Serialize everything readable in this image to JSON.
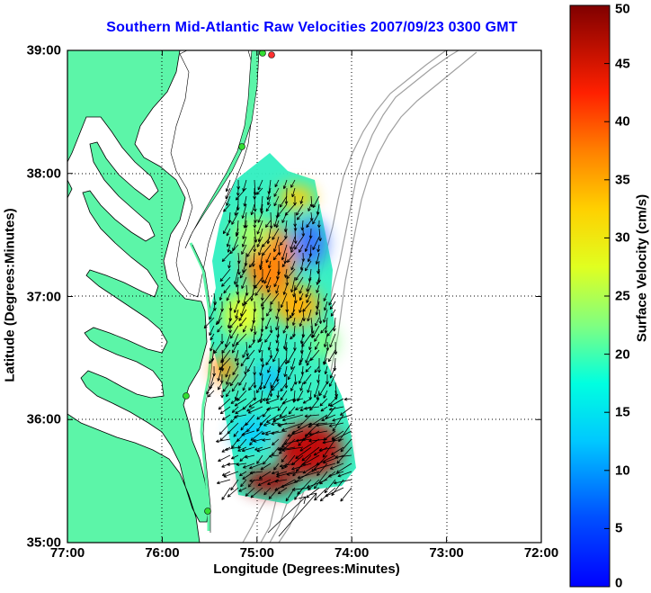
{
  "title": "Southern Mid-Atlantic Raw Velocities 2007/09/23 0300 GMT",
  "x_axis": {
    "label": "Longitude (Degrees:Minutes)",
    "ticks": [
      "77:00",
      "76:00",
      "75:00",
      "74:00",
      "73:00",
      "72:00"
    ]
  },
  "y_axis": {
    "label": "Latitude (Degrees:Minutes)",
    "ticks": [
      "39:00",
      "38:00",
      "37:00",
      "36:00",
      "35:00"
    ]
  },
  "colorbar": {
    "label": "Surface Velocity (cm/s)",
    "ticks": [
      "50",
      "45",
      "40",
      "35",
      "30",
      "25",
      "20",
      "15",
      "10",
      "5",
      "0"
    ],
    "min": 0,
    "max": 50,
    "colormap": "jet"
  },
  "map": {
    "lon_range": [
      -77,
      -72
    ],
    "lat_range": [
      35,
      39
    ],
    "land_color": "#5cf5a8",
    "grid": "dotted",
    "coastline_color": "#000000",
    "bathymetry_color": "#a0a0a0"
  },
  "legend": {
    "station_marker_color": "#33dd33",
    "station_marker_color_alt": "#ff3030"
  }
}
